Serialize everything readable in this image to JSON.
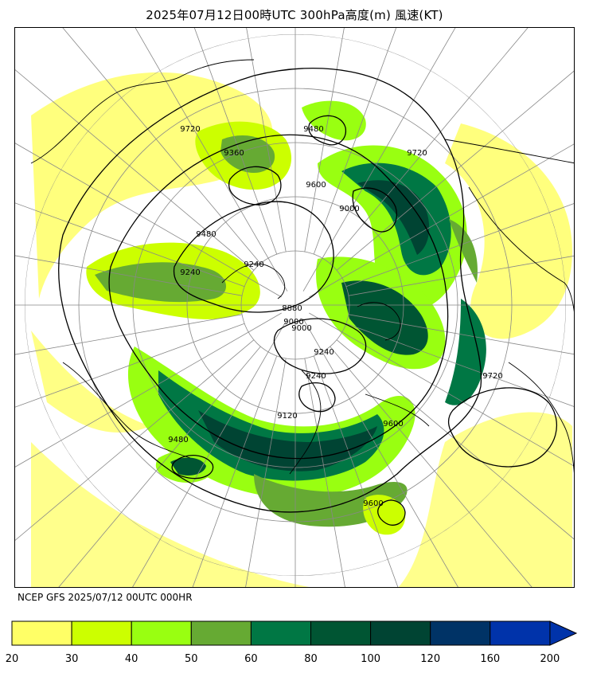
{
  "title": "2025年07月12日00時UTC 300hPa高度(m) 風速(KT)",
  "footer": "NCEP GFS 2025/07/12 00UTC 000HR",
  "contour_labels": [
    "9720",
    "9360",
    "9480",
    "9600",
    "9720",
    "9480",
    "9240",
    "9000",
    "9240",
    "9000",
    "8880",
    "9000",
    "9240",
    "9120",
    "9600",
    "9720",
    "9600",
    "9480",
    "9240"
  ],
  "colorbar": {
    "unit": "KT",
    "ticks": [
      "20",
      "30",
      "40",
      "50",
      "60",
      "80",
      "100",
      "120",
      "160",
      "200"
    ],
    "colors": [
      "#ffff66",
      "#ccff00",
      "#99ff11",
      "#66aa33",
      "#007744",
      "#005533",
      "#004433",
      "#003366",
      "#0033aa"
    ],
    "extend_color": "#0033aa"
  },
  "colors": {
    "land_outline": "#000000",
    "grid": "#888888",
    "contour": "#000000"
  }
}
